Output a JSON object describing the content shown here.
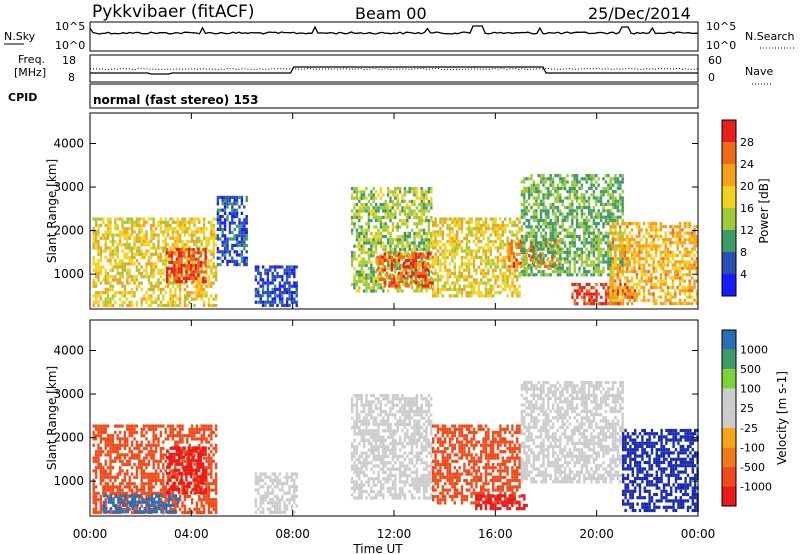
{
  "header": {
    "station": "Pykkvibaer (fitACF)",
    "beam": "Beam 00",
    "date": "25/Dec/2014"
  },
  "noise_panel": {
    "left_label": "N.Sky",
    "right_label": "N.Search",
    "left_ticks": [
      "10^5",
      "10^0"
    ],
    "right_ticks": [
      "10^5",
      "10^0"
    ]
  },
  "freq_panel": {
    "left_label_top": "Freq.",
    "left_label_bottom": "[MHz]",
    "right_label": "Nave",
    "left_ticks": [
      "18",
      "8"
    ],
    "right_ticks": [
      "60",
      "0"
    ]
  },
  "cpid_panel": {
    "label": "CPID",
    "text": "normal (fast stereo) 153"
  },
  "colors": {
    "power": [
      "#1a1aff",
      "#2a4fb0",
      "#3f9a6a",
      "#9fc93a",
      "#f2d21e",
      "#f6a01a",
      "#f06a18",
      "#e8201a"
    ],
    "velocity": [
      "#e81a1a",
      "#f04a1a",
      "#f07a1a",
      "#f5a51a",
      "#cccccc",
      "#cccccc",
      "#7fd13a",
      "#3f9a6a",
      "#2a6fb5",
      "#1a2ab0"
    ]
  },
  "chart_data": [
    {
      "type": "heatmap",
      "panel": "power",
      "ylabel": "Slant Range [km]",
      "yticks": [
        "1000",
        "2000",
        "3000",
        "4000"
      ],
      "ylim": [
        200,
        4700
      ],
      "xlim_hours": [
        0,
        24
      ],
      "xticks": [
        "00:00",
        "04:00",
        "08:00",
        "12:00",
        "16:00",
        "20:00",
        "00:00"
      ],
      "colorbar_label": "Power [dB]",
      "colorbar_ticks": [
        "28",
        "24",
        "20",
        "16",
        "12",
        "8",
        "4"
      ],
      "colorbar_range": [
        0,
        32
      ],
      "regions": [
        {
          "t0": 0.1,
          "t1": 5.0,
          "r0": 300,
          "r1": 2300,
          "value": 18
        },
        {
          "t0": 3.0,
          "t1": 4.6,
          "r0": 800,
          "r1": 1600,
          "value": 28
        },
        {
          "t0": 5.0,
          "t1": 6.2,
          "r0": 1200,
          "r1": 2800,
          "value": 6
        },
        {
          "t0": 6.5,
          "t1": 8.2,
          "r0": 300,
          "r1": 1200,
          "value": 5
        },
        {
          "t0": 10.3,
          "t1": 13.5,
          "r0": 600,
          "r1": 3000,
          "value": 14
        },
        {
          "t0": 11.3,
          "t1": 13.5,
          "r0": 700,
          "r1": 1500,
          "value": 27
        },
        {
          "t0": 13.5,
          "t1": 17.0,
          "r0": 500,
          "r1": 2300,
          "value": 18
        },
        {
          "t0": 16.5,
          "t1": 18.5,
          "r0": 1200,
          "r1": 1800,
          "value": 25
        },
        {
          "t0": 17.0,
          "t1": 21.0,
          "r0": 1000,
          "r1": 3300,
          "value": 12
        },
        {
          "t0": 19.0,
          "t1": 21.5,
          "r0": 300,
          "r1": 800,
          "value": 29
        },
        {
          "t0": 20.5,
          "t1": 24.0,
          "r0": 300,
          "r1": 2200,
          "value": 21
        }
      ]
    },
    {
      "type": "heatmap",
      "panel": "velocity",
      "ylabel": "Slant Range [km]",
      "yticks": [
        "1000",
        "2000",
        "3000",
        "4000"
      ],
      "ylim": [
        200,
        4700
      ],
      "xlim_hours": [
        0,
        24
      ],
      "xticks": [
        "00:00",
        "04:00",
        "08:00",
        "12:00",
        "16:00",
        "20:00",
        "00:00"
      ],
      "xlabel": "Time UT",
      "colorbar_label": "Velocity [m s-1]",
      "colorbar_ticks": [
        "1000",
        "500",
        "100",
        "25",
        "-25",
        "-100",
        "-500",
        "-1000"
      ],
      "regions": [
        {
          "t0": 0.1,
          "t1": 5.0,
          "r0": 300,
          "r1": 2300,
          "value": -100
        },
        {
          "t0": 0.5,
          "t1": 3.5,
          "r0": 300,
          "r1": 700,
          "value": 150
        },
        {
          "t0": 3.0,
          "t1": 4.6,
          "r0": 700,
          "r1": 1800,
          "value": -300
        },
        {
          "t0": 6.5,
          "t1": 8.2,
          "r0": 300,
          "r1": 1200,
          "value": 0
        },
        {
          "t0": 10.3,
          "t1": 13.5,
          "r0": 600,
          "r1": 3000,
          "value": 0
        },
        {
          "t0": 13.5,
          "t1": 17.0,
          "r0": 500,
          "r1": 2300,
          "value": -100
        },
        {
          "t0": 15.2,
          "t1": 17.2,
          "r0": 400,
          "r1": 700,
          "value": -400
        },
        {
          "t0": 17.0,
          "t1": 21.0,
          "r0": 1000,
          "r1": 3300,
          "value": 0
        },
        {
          "t0": 21.0,
          "t1": 24.0,
          "r0": 300,
          "r1": 2200,
          "value": 200
        }
      ]
    }
  ]
}
